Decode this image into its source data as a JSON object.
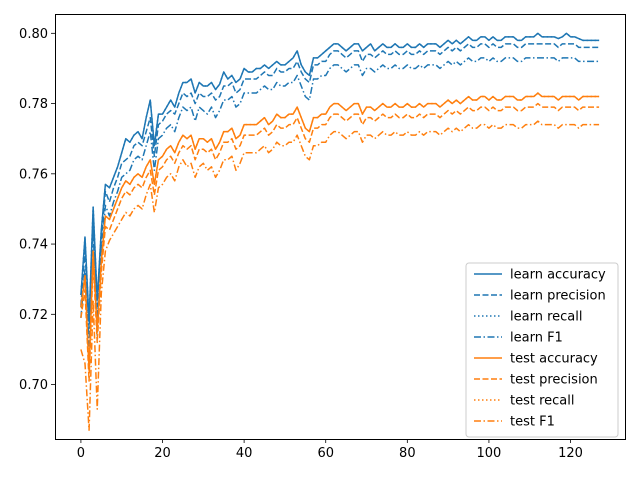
{
  "chart_data": {
    "type": "line",
    "title": "",
    "xlabel": "",
    "ylabel": "",
    "xlim": [
      -6.35,
      133.35
    ],
    "ylim": [
      0.6845,
      0.8055
    ],
    "xticks": [
      0,
      20,
      40,
      60,
      80,
      100,
      120
    ],
    "yticks": [
      0.7,
      0.72,
      0.74,
      0.76,
      0.78,
      0.8
    ],
    "ytick_labels": [
      "0.70",
      "0.72",
      "0.74",
      "0.76",
      "0.78",
      "0.80"
    ],
    "grid": false,
    "legend_position": "lower-right",
    "colors": {
      "learn": "#1f77b4",
      "test": "#ff7f0e"
    },
    "x_step": 1,
    "series": [
      {
        "name": "learn accuracy",
        "color": "#1f77b4",
        "style": "solid",
        "values": [
          0.7255,
          0.742,
          0.718,
          0.7505,
          0.724,
          0.744,
          0.757,
          0.756,
          0.759,
          0.762,
          0.766,
          0.77,
          0.769,
          0.771,
          0.772,
          0.77,
          0.776,
          0.781,
          0.768,
          0.777,
          0.777,
          0.779,
          0.781,
          0.779,
          0.783,
          0.786,
          0.786,
          0.787,
          0.783,
          0.786,
          0.785,
          0.785,
          0.786,
          0.784,
          0.7855,
          0.789,
          0.787,
          0.788,
          0.786,
          0.787,
          0.79,
          0.789,
          0.789,
          0.79,
          0.79,
          0.791,
          0.79,
          0.791,
          0.792,
          0.791,
          0.791,
          0.792,
          0.793,
          0.795,
          0.791,
          0.789,
          0.788,
          0.793,
          0.793,
          0.794,
          0.795,
          0.796,
          0.797,
          0.797,
          0.796,
          0.795,
          0.796,
          0.797,
          0.797,
          0.795,
          0.796,
          0.797,
          0.795,
          0.796,
          0.797,
          0.796,
          0.796,
          0.797,
          0.796,
          0.796,
          0.797,
          0.796,
          0.796,
          0.797,
          0.796,
          0.797,
          0.797,
          0.797,
          0.796,
          0.797,
          0.798,
          0.797,
          0.798,
          0.797,
          0.798,
          0.799,
          0.798,
          0.798,
          0.799,
          0.799,
          0.798,
          0.799,
          0.798,
          0.798,
          0.799,
          0.799,
          0.799,
          0.798,
          0.798,
          0.799,
          0.799,
          0.799,
          0.8,
          0.799,
          0.799,
          0.799,
          0.799,
          0.7985,
          0.799,
          0.8,
          0.799,
          0.799,
          0.7985,
          0.798,
          0.798,
          0.798,
          0.798,
          0.798
        ]
      },
      {
        "name": "learn precision",
        "color": "#1f77b4",
        "style": "dashed",
        "values": [
          0.7225,
          0.738,
          0.716,
          0.748,
          0.719,
          0.741,
          0.755,
          0.752,
          0.756,
          0.759,
          0.763,
          0.764,
          0.765,
          0.768,
          0.769,
          0.768,
          0.772,
          0.776,
          0.765,
          0.774,
          0.775,
          0.777,
          0.778,
          0.777,
          0.78,
          0.783,
          0.782,
          0.783,
          0.78,
          0.783,
          0.782,
          0.782,
          0.783,
          0.781,
          0.782,
          0.785,
          0.785,
          0.786,
          0.783,
          0.784,
          0.787,
          0.787,
          0.787,
          0.787,
          0.788,
          0.789,
          0.788,
          0.788,
          0.79,
          0.789,
          0.789,
          0.79,
          0.79,
          0.792,
          0.789,
          0.787,
          0.786,
          0.791,
          0.791,
          0.792,
          0.792,
          0.794,
          0.795,
          0.795,
          0.794,
          0.793,
          0.794,
          0.795,
          0.795,
          0.792,
          0.794,
          0.794,
          0.793,
          0.794,
          0.795,
          0.794,
          0.794,
          0.795,
          0.794,
          0.794,
          0.795,
          0.794,
          0.794,
          0.795,
          0.794,
          0.795,
          0.795,
          0.795,
          0.794,
          0.795,
          0.796,
          0.795,
          0.796,
          0.795,
          0.796,
          0.797,
          0.796,
          0.796,
          0.797,
          0.797,
          0.796,
          0.797,
          0.796,
          0.796,
          0.797,
          0.797,
          0.797,
          0.796,
          0.796,
          0.797,
          0.797,
          0.797,
          0.797,
          0.797,
          0.797,
          0.797,
          0.797,
          0.796,
          0.797,
          0.797,
          0.797,
          0.797,
          0.796,
          0.796,
          0.796,
          0.796,
          0.796,
          0.796
        ]
      },
      {
        "name": "learn recall",
        "color": "#1f77b4",
        "style": "dotted",
        "values": [
          0.7255,
          0.742,
          0.718,
          0.7505,
          0.724,
          0.744,
          0.757,
          0.756,
          0.759,
          0.762,
          0.766,
          0.77,
          0.769,
          0.771,
          0.772,
          0.77,
          0.776,
          0.781,
          0.768,
          0.777,
          0.777,
          0.779,
          0.781,
          0.779,
          0.783,
          0.786,
          0.786,
          0.787,
          0.783,
          0.786,
          0.785,
          0.785,
          0.786,
          0.784,
          0.7855,
          0.789,
          0.787,
          0.788,
          0.786,
          0.787,
          0.79,
          0.789,
          0.789,
          0.79,
          0.79,
          0.791,
          0.79,
          0.791,
          0.792,
          0.791,
          0.791,
          0.792,
          0.793,
          0.795,
          0.791,
          0.789,
          0.788,
          0.793,
          0.793,
          0.794,
          0.795,
          0.796,
          0.797,
          0.797,
          0.796,
          0.795,
          0.796,
          0.797,
          0.797,
          0.795,
          0.796,
          0.797,
          0.795,
          0.796,
          0.797,
          0.796,
          0.796,
          0.797,
          0.796,
          0.796,
          0.797,
          0.796,
          0.796,
          0.797,
          0.796,
          0.797,
          0.797,
          0.797,
          0.796,
          0.797,
          0.798,
          0.797,
          0.798,
          0.797,
          0.798,
          0.799,
          0.798,
          0.798,
          0.799,
          0.799,
          0.798,
          0.799,
          0.798,
          0.798,
          0.799,
          0.799,
          0.799,
          0.798,
          0.798,
          0.799,
          0.799,
          0.799,
          0.8,
          0.799,
          0.799,
          0.799,
          0.799,
          0.7985,
          0.799,
          0.8,
          0.799,
          0.799,
          0.7985,
          0.798,
          0.798,
          0.798,
          0.798,
          0.798
        ]
      },
      {
        "name": "learn F1",
        "color": "#1f77b4",
        "style": "dashdot",
        "values": [
          0.719,
          0.733,
          0.711,
          0.744,
          0.714,
          0.737,
          0.751,
          0.748,
          0.752,
          0.755,
          0.759,
          0.76,
          0.761,
          0.764,
          0.765,
          0.764,
          0.768,
          0.772,
          0.761,
          0.77,
          0.771,
          0.773,
          0.774,
          0.772,
          0.776,
          0.779,
          0.778,
          0.779,
          0.775,
          0.779,
          0.778,
          0.777,
          0.779,
          0.776,
          0.778,
          0.781,
          0.781,
          0.782,
          0.779,
          0.78,
          0.783,
          0.783,
          0.783,
          0.783,
          0.784,
          0.785,
          0.784,
          0.784,
          0.786,
          0.785,
          0.785,
          0.786,
          0.786,
          0.788,
          0.785,
          0.782,
          0.781,
          0.787,
          0.787,
          0.788,
          0.788,
          0.79,
          0.791,
          0.791,
          0.79,
          0.789,
          0.79,
          0.791,
          0.791,
          0.788,
          0.79,
          0.79,
          0.789,
          0.79,
          0.791,
          0.79,
          0.79,
          0.791,
          0.79,
          0.79,
          0.791,
          0.79,
          0.79,
          0.791,
          0.79,
          0.791,
          0.791,
          0.791,
          0.79,
          0.791,
          0.792,
          0.791,
          0.792,
          0.791,
          0.792,
          0.793,
          0.792,
          0.792,
          0.793,
          0.793,
          0.792,
          0.793,
          0.792,
          0.792,
          0.793,
          0.793,
          0.793,
          0.792,
          0.792,
          0.793,
          0.793,
          0.793,
          0.793,
          0.793,
          0.793,
          0.793,
          0.793,
          0.792,
          0.793,
          0.793,
          0.793,
          0.793,
          0.792,
          0.792,
          0.792,
          0.792,
          0.792,
          0.792
        ]
      },
      {
        "name": "test accuracy",
        "color": "#ff7f0e",
        "style": "solid",
        "values": [
          0.722,
          0.731,
          0.704,
          0.738,
          0.715,
          0.735,
          0.748,
          0.747,
          0.75,
          0.753,
          0.756,
          0.758,
          0.757,
          0.759,
          0.76,
          0.759,
          0.762,
          0.764,
          0.757,
          0.764,
          0.765,
          0.767,
          0.768,
          0.766,
          0.769,
          0.771,
          0.77,
          0.771,
          0.767,
          0.77,
          0.77,
          0.769,
          0.77,
          0.767,
          0.769,
          0.772,
          0.772,
          0.773,
          0.77,
          0.771,
          0.774,
          0.774,
          0.774,
          0.774,
          0.775,
          0.776,
          0.774,
          0.775,
          0.777,
          0.776,
          0.776,
          0.777,
          0.777,
          0.779,
          0.776,
          0.773,
          0.772,
          0.776,
          0.776,
          0.777,
          0.777,
          0.779,
          0.78,
          0.78,
          0.779,
          0.778,
          0.779,
          0.78,
          0.78,
          0.777,
          0.779,
          0.779,
          0.778,
          0.779,
          0.78,
          0.779,
          0.779,
          0.78,
          0.779,
          0.779,
          0.78,
          0.779,
          0.779,
          0.78,
          0.779,
          0.78,
          0.78,
          0.78,
          0.779,
          0.78,
          0.781,
          0.78,
          0.781,
          0.78,
          0.781,
          0.782,
          0.781,
          0.781,
          0.782,
          0.782,
          0.781,
          0.782,
          0.781,
          0.781,
          0.782,
          0.782,
          0.782,
          0.781,
          0.781,
          0.782,
          0.782,
          0.782,
          0.783,
          0.782,
          0.782,
          0.782,
          0.782,
          0.781,
          0.782,
          0.782,
          0.782,
          0.782,
          0.781,
          0.782,
          0.782,
          0.782,
          0.782,
          0.782
        ]
      },
      {
        "name": "test precision",
        "color": "#ff7f0e",
        "style": "dashed",
        "values": [
          0.719,
          0.727,
          0.701,
          0.735,
          0.712,
          0.732,
          0.745,
          0.744,
          0.747,
          0.75,
          0.753,
          0.755,
          0.754,
          0.756,
          0.757,
          0.756,
          0.759,
          0.761,
          0.754,
          0.761,
          0.762,
          0.764,
          0.765,
          0.763,
          0.766,
          0.768,
          0.767,
          0.768,
          0.764,
          0.767,
          0.767,
          0.766,
          0.767,
          0.764,
          0.766,
          0.769,
          0.769,
          0.77,
          0.767,
          0.768,
          0.771,
          0.771,
          0.771,
          0.771,
          0.772,
          0.773,
          0.771,
          0.772,
          0.774,
          0.773,
          0.773,
          0.774,
          0.774,
          0.776,
          0.773,
          0.77,
          0.769,
          0.773,
          0.773,
          0.774,
          0.774,
          0.776,
          0.777,
          0.777,
          0.776,
          0.775,
          0.776,
          0.777,
          0.777,
          0.774,
          0.776,
          0.776,
          0.775,
          0.776,
          0.777,
          0.776,
          0.776,
          0.777,
          0.776,
          0.776,
          0.777,
          0.776,
          0.776,
          0.777,
          0.776,
          0.777,
          0.777,
          0.777,
          0.776,
          0.777,
          0.778,
          0.777,
          0.778,
          0.777,
          0.778,
          0.779,
          0.778,
          0.778,
          0.779,
          0.779,
          0.778,
          0.779,
          0.778,
          0.778,
          0.779,
          0.779,
          0.779,
          0.778,
          0.778,
          0.779,
          0.779,
          0.779,
          0.78,
          0.779,
          0.779,
          0.779,
          0.779,
          0.778,
          0.779,
          0.779,
          0.779,
          0.779,
          0.778,
          0.779,
          0.779,
          0.779,
          0.779,
          0.779
        ]
      },
      {
        "name": "test recall",
        "color": "#ff7f0e",
        "style": "dotted",
        "values": [
          0.722,
          0.731,
          0.704,
          0.738,
          0.715,
          0.735,
          0.748,
          0.747,
          0.75,
          0.753,
          0.756,
          0.758,
          0.757,
          0.759,
          0.76,
          0.759,
          0.762,
          0.764,
          0.757,
          0.764,
          0.765,
          0.767,
          0.768,
          0.766,
          0.769,
          0.771,
          0.77,
          0.771,
          0.767,
          0.77,
          0.77,
          0.769,
          0.77,
          0.767,
          0.769,
          0.772,
          0.772,
          0.773,
          0.77,
          0.771,
          0.774,
          0.774,
          0.774,
          0.774,
          0.775,
          0.776,
          0.774,
          0.775,
          0.777,
          0.776,
          0.776,
          0.777,
          0.777,
          0.779,
          0.776,
          0.773,
          0.772,
          0.776,
          0.776,
          0.777,
          0.777,
          0.779,
          0.78,
          0.78,
          0.779,
          0.778,
          0.779,
          0.78,
          0.78,
          0.777,
          0.779,
          0.779,
          0.778,
          0.779,
          0.78,
          0.779,
          0.779,
          0.78,
          0.779,
          0.779,
          0.78,
          0.779,
          0.779,
          0.78,
          0.779,
          0.78,
          0.78,
          0.78,
          0.779,
          0.78,
          0.781,
          0.78,
          0.781,
          0.78,
          0.781,
          0.782,
          0.781,
          0.781,
          0.782,
          0.782,
          0.781,
          0.782,
          0.781,
          0.781,
          0.782,
          0.782,
          0.782,
          0.781,
          0.781,
          0.782,
          0.782,
          0.782,
          0.783,
          0.782,
          0.782,
          0.782,
          0.782,
          0.781,
          0.782,
          0.782,
          0.782,
          0.782,
          0.781,
          0.782,
          0.782,
          0.782,
          0.782,
          0.782
        ]
      },
      {
        "name": "test F1",
        "color": "#ff7f0e",
        "style": "dashdot",
        "values": [
          0.71,
          0.706,
          0.687,
          0.724,
          0.693,
          0.726,
          0.738,
          0.741,
          0.743,
          0.745,
          0.747,
          0.749,
          0.748,
          0.75,
          0.751,
          0.75,
          0.754,
          0.757,
          0.749,
          0.756,
          0.757,
          0.759,
          0.76,
          0.758,
          0.762,
          0.764,
          0.762,
          0.763,
          0.759,
          0.762,
          0.763,
          0.761,
          0.762,
          0.759,
          0.761,
          0.764,
          0.764,
          0.765,
          0.761,
          0.763,
          0.766,
          0.766,
          0.766,
          0.766,
          0.767,
          0.768,
          0.766,
          0.767,
          0.769,
          0.768,
          0.768,
          0.769,
          0.769,
          0.771,
          0.768,
          0.765,
          0.764,
          0.768,
          0.768,
          0.769,
          0.769,
          0.771,
          0.772,
          0.772,
          0.771,
          0.77,
          0.771,
          0.772,
          0.772,
          0.769,
          0.771,
          0.771,
          0.77,
          0.771,
          0.772,
          0.771,
          0.771,
          0.772,
          0.771,
          0.771,
          0.772,
          0.771,
          0.771,
          0.772,
          0.771,
          0.772,
          0.772,
          0.772,
          0.771,
          0.772,
          0.773,
          0.772,
          0.773,
          0.772,
          0.773,
          0.774,
          0.773,
          0.773,
          0.774,
          0.774,
          0.773,
          0.774,
          0.773,
          0.773,
          0.774,
          0.774,
          0.774,
          0.773,
          0.773,
          0.774,
          0.774,
          0.774,
          0.775,
          0.774,
          0.774,
          0.774,
          0.774,
          0.773,
          0.774,
          0.774,
          0.774,
          0.774,
          0.773,
          0.774,
          0.774,
          0.774,
          0.774,
          0.774
        ]
      }
    ]
  }
}
